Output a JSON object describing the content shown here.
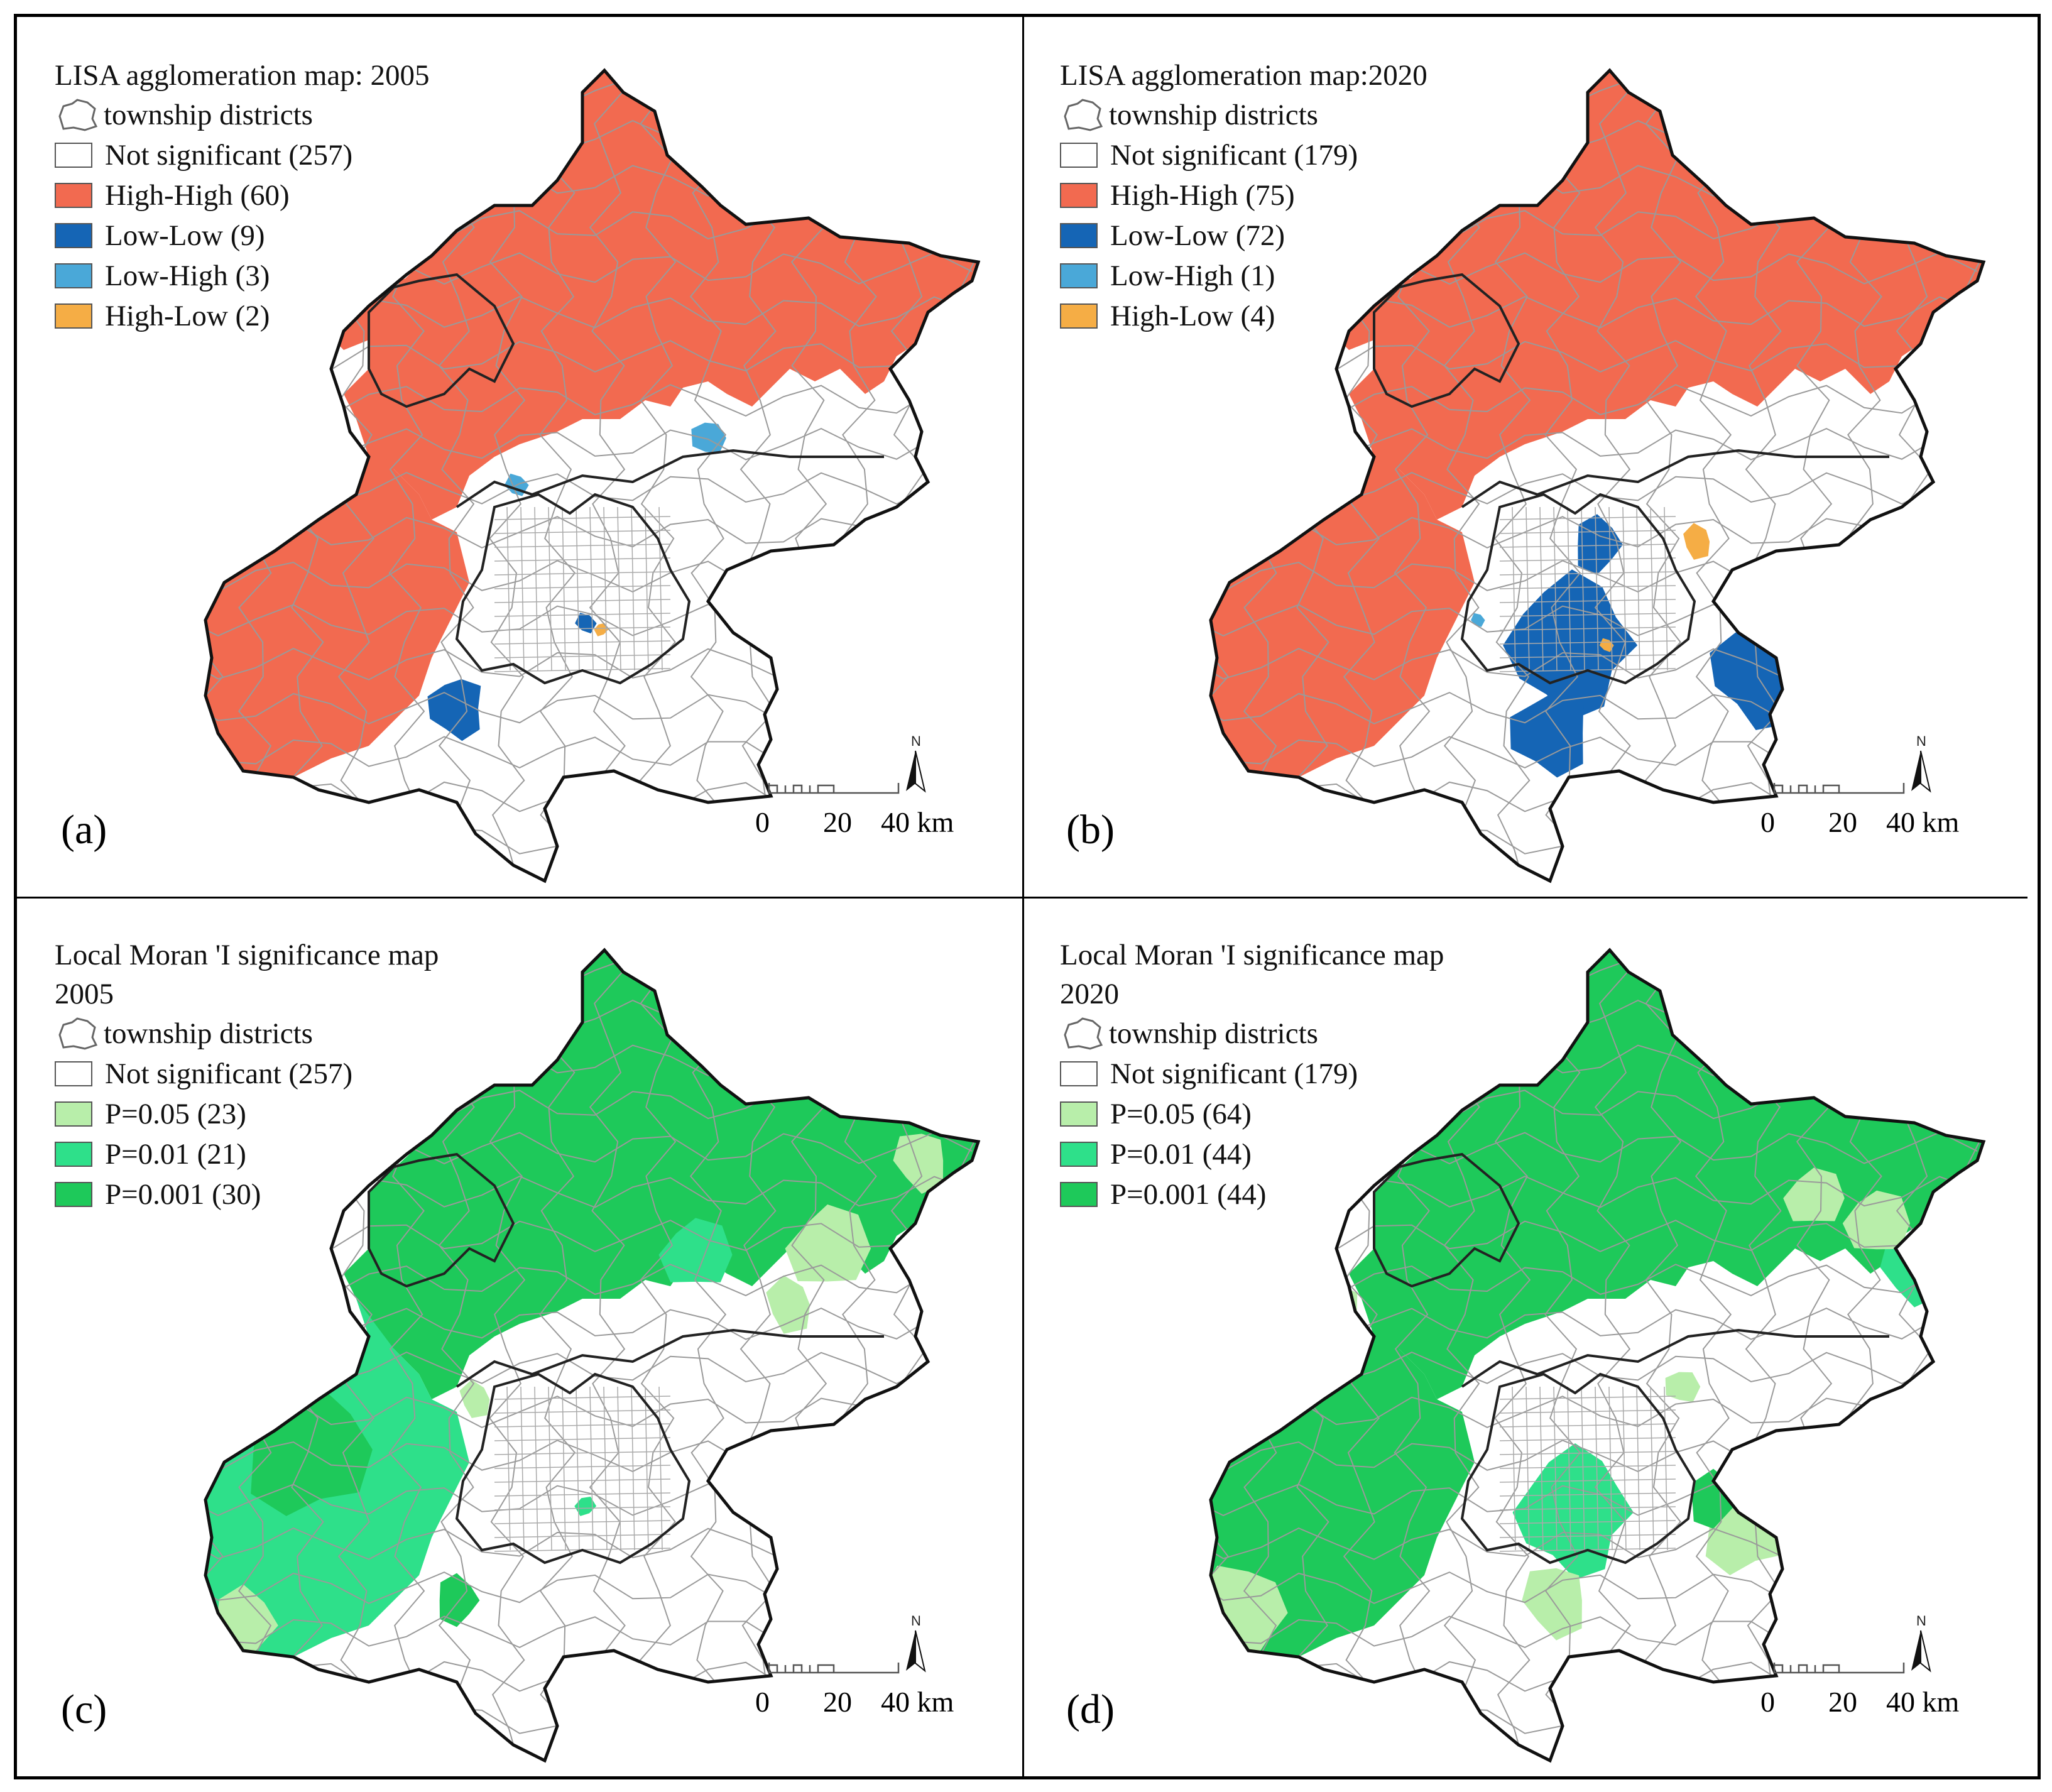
{
  "panels": [
    {
      "tag": "(a)",
      "title": "LISA agglomeration map: 2005",
      "boundary_label": "township districts",
      "legend": [
        {
          "label": "Not significant (257)",
          "color": "#ffffff"
        },
        {
          "label": "High-High (60)",
          "color": "#f26a50"
        },
        {
          "label": "Low-Low (9)",
          "color": "#1565b5"
        },
        {
          "label": "Low-High (3)",
          "color": "#4aa8d8"
        },
        {
          "label": "High-Low (2)",
          "color": "#f5ad45"
        }
      ]
    },
    {
      "tag": "(b)",
      "title": "LISA agglomeration map:2020",
      "boundary_label": "township districts",
      "legend": [
        {
          "label": "Not significant (179)",
          "color": "#ffffff"
        },
        {
          "label": "High-High (75)",
          "color": "#f26a50"
        },
        {
          "label": "Low-Low (72)",
          "color": "#1565b5"
        },
        {
          "label": "Low-High (1)",
          "color": "#4aa8d8"
        },
        {
          "label": "High-Low (4)",
          "color": "#f5ad45"
        }
      ]
    },
    {
      "tag": "(c)",
      "title": "Local Moran 'I significance map\n2005",
      "boundary_label": "township districts",
      "legend": [
        {
          "label": "Not significant (257)",
          "color": "#ffffff"
        },
        {
          "label": "P=0.05 (23)",
          "color": "#b8eeaa"
        },
        {
          "label": "P=0.01 (21)",
          "color": "#2ee08a"
        },
        {
          "label": "P=0.001 (30)",
          "color": "#1ec95a"
        }
      ]
    },
    {
      "tag": "(d)",
      "title": "Local Moran 'I significance map\n2020",
      "boundary_label": "township districts",
      "legend": [
        {
          "label": "Not significant (179)",
          "color": "#ffffff"
        },
        {
          "label": "P=0.05 (64)",
          "color": "#b8eeaa"
        },
        {
          "label": "P=0.01 (44)",
          "color": "#2ee08a"
        },
        {
          "label": "P=0.001 (44)",
          "color": "#1ec95a"
        }
      ]
    }
  ],
  "scale_labels": [
    "0",
    "20",
    "40 km"
  ],
  "north_label": "N"
}
